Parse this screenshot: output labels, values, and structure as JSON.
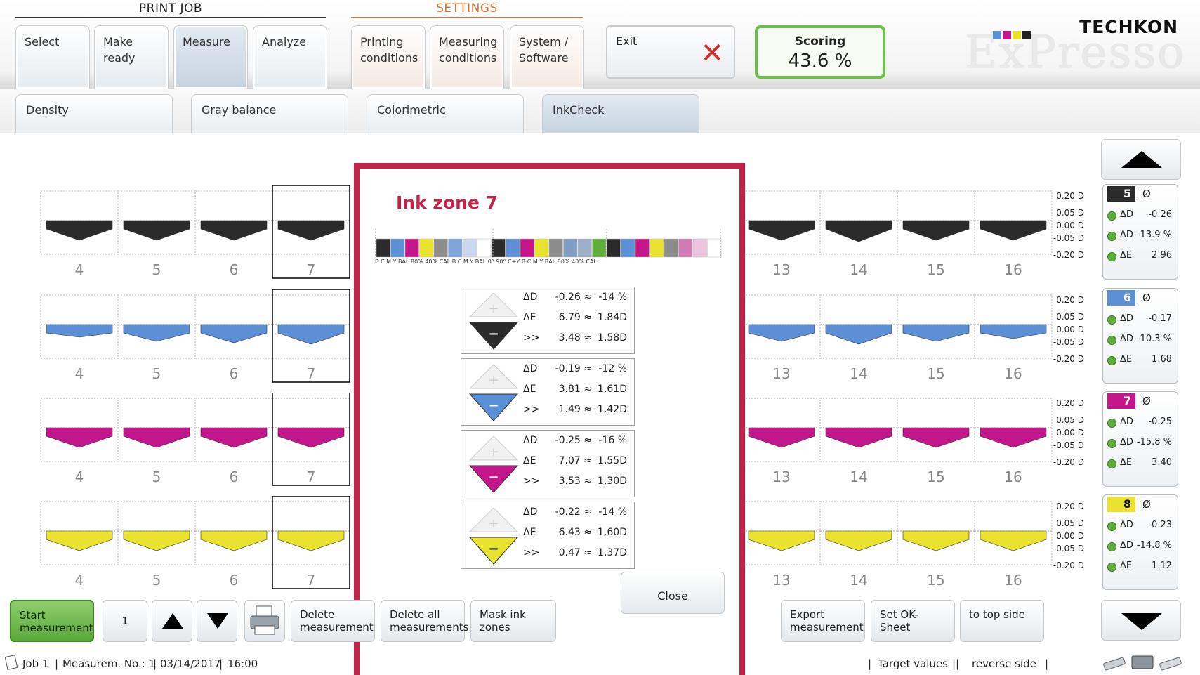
{
  "top_groups": {
    "print_job": "PRINT JOB",
    "settings": "SETTINGS"
  },
  "tabs": [
    "Select",
    "Make ready",
    "Measure",
    "Analyze"
  ],
  "settings_tabs": [
    [
      "Printing",
      "conditions"
    ],
    [
      "Measuring",
      "conditions"
    ],
    [
      "System /",
      "Software"
    ]
  ],
  "exit_label": "Exit",
  "scoring": {
    "label": "Scoring",
    "value": "43.6 %"
  },
  "logo": {
    "brand": "TECHKON",
    "product": "ExPresso"
  },
  "subtabs": [
    "Density",
    "Gray balance",
    "Colorimetric",
    "InkCheck"
  ],
  "zone_numbers_left": [
    "4",
    "5",
    "6",
    "7"
  ],
  "zone_numbers_right": [
    "13",
    "14",
    "15",
    "16"
  ],
  "scale_labels": [
    "0.20 D",
    "0.05 D",
    "0.00 D",
    "-0.05 D",
    "-0.20 D"
  ],
  "rows": [
    {
      "color": "#2b2b2b",
      "arrow_depth": [
        0.7,
        0.7,
        0.7,
        0.7,
        0.7,
        0.75,
        0.7,
        0.7
      ]
    },
    {
      "color": "#5b8fd6",
      "arrow_depth": [
        0.45,
        0.6,
        0.65,
        0.7,
        0.6,
        0.7,
        0.6,
        0.5
      ]
    },
    {
      "color": "#c4168b",
      "arrow_depth": [
        0.7,
        0.7,
        0.7,
        0.7,
        0.7,
        0.7,
        0.7,
        0.7
      ]
    },
    {
      "color": "#e9e22e",
      "arrow_depth": [
        0.7,
        0.7,
        0.7,
        0.7,
        0.7,
        0.7,
        0.7,
        0.7
      ]
    }
  ],
  "side_cards": [
    {
      "num": "5",
      "color": "#2b2b2b",
      "avg": "Ø",
      "lines": [
        [
          "ΔD",
          "-0.26"
        ],
        [
          "ΔD",
          "-13.9 %"
        ],
        [
          "ΔE",
          "2.96"
        ]
      ]
    },
    {
      "num": "6",
      "color": "#5b8fd6",
      "avg": "Ø",
      "lines": [
        [
          "ΔD",
          "-0.17"
        ],
        [
          "ΔD",
          "-10.3 %"
        ],
        [
          "ΔE",
          "1.68"
        ]
      ]
    },
    {
      "num": "7",
      "color": "#c4168b",
      "avg": "Ø",
      "lines": [
        [
          "ΔD",
          "-0.25"
        ],
        [
          "ΔD",
          "-15.8 %"
        ],
        [
          "ΔE",
          "3.40"
        ]
      ]
    },
    {
      "num": "8",
      "color": "#e9e22e",
      "avg": "Ø",
      "lines": [
        [
          "ΔD",
          "-0.23"
        ],
        [
          "ΔD",
          "-14.8 %"
        ],
        [
          "ΔE",
          "1.12"
        ]
      ]
    }
  ],
  "modal": {
    "title": "Ink zone 7",
    "strip_labels": "B    C    M    Y   BAL 80% 40%  CAL  B    C    M    Y   BAL   0°   90°  C+Y  B    C    M    Y   BAL 80% 40%  CAL",
    "strip_colors": [
      "#2b2b2b",
      "#5b8fd6",
      "#c4168b",
      "#e9e22e",
      "#8c8c8c",
      "#7fa6dc",
      "#c9d8ee",
      "#ffffff",
      "#2b2b2b",
      "#5b8fd6",
      "#c4168b",
      "#e9e22e",
      "#8c8c8c",
      "#7f9cc2",
      "#9db0c8",
      "#5fae3b",
      "#2b2b2b",
      "#5b8fd6",
      "#c4168b",
      "#e9e22e",
      "#8c8c8c",
      "#d07cb4",
      "#edc3de",
      "#ffffff"
    ],
    "details": [
      {
        "color": "#2b2b2b",
        "rows": [
          [
            "ΔD",
            "-0.26 ≈",
            "-14 %"
          ],
          [
            "ΔE",
            "6.79 ≈",
            "1.84D"
          ],
          [
            ">>",
            "3.48 ≈",
            "1.58D"
          ]
        ]
      },
      {
        "color": "#5b8fd6",
        "rows": [
          [
            "ΔD",
            "-0.19 ≈",
            "-12 %"
          ],
          [
            "ΔE",
            "3.81 ≈",
            "1.61D"
          ],
          [
            ">>",
            "1.49 ≈",
            "1.42D"
          ]
        ]
      },
      {
        "color": "#c4168b",
        "rows": [
          [
            "ΔD",
            "-0.25 ≈",
            "-16 %"
          ],
          [
            "ΔE",
            "7.07 ≈",
            "1.55D"
          ],
          [
            ">>",
            "3.53 ≈",
            "1.30D"
          ]
        ]
      },
      {
        "color": "#e9e22e",
        "rows": [
          [
            "ΔD",
            "-0.22 ≈",
            "-14 %"
          ],
          [
            "ΔE",
            "6.43 ≈",
            "1.60D"
          ],
          [
            ">>",
            "0.47 ≈",
            "1.37D"
          ]
        ]
      }
    ],
    "close_label": "Close"
  },
  "toolbar": {
    "start": [
      "Start",
      "measurement"
    ],
    "counter": "1",
    "delete": [
      "Delete",
      "measurement"
    ],
    "delete_all": [
      "Delete all",
      "measurements"
    ],
    "mask": "Mask ink zones",
    "export": [
      "Export",
      "measurement"
    ],
    "ok_sheet": "Set OK-Sheet",
    "top_side": "to top side"
  },
  "status": {
    "job": "Job 1",
    "measurement_no": "Measurem. No.: 1",
    "date": "03/14/2017",
    "time": "16:00",
    "target": "Target values",
    "reverse": "reverse side"
  },
  "colors": {
    "accent": "#c5224a",
    "settings": "#d9742f",
    "green": "#5fae3b"
  }
}
